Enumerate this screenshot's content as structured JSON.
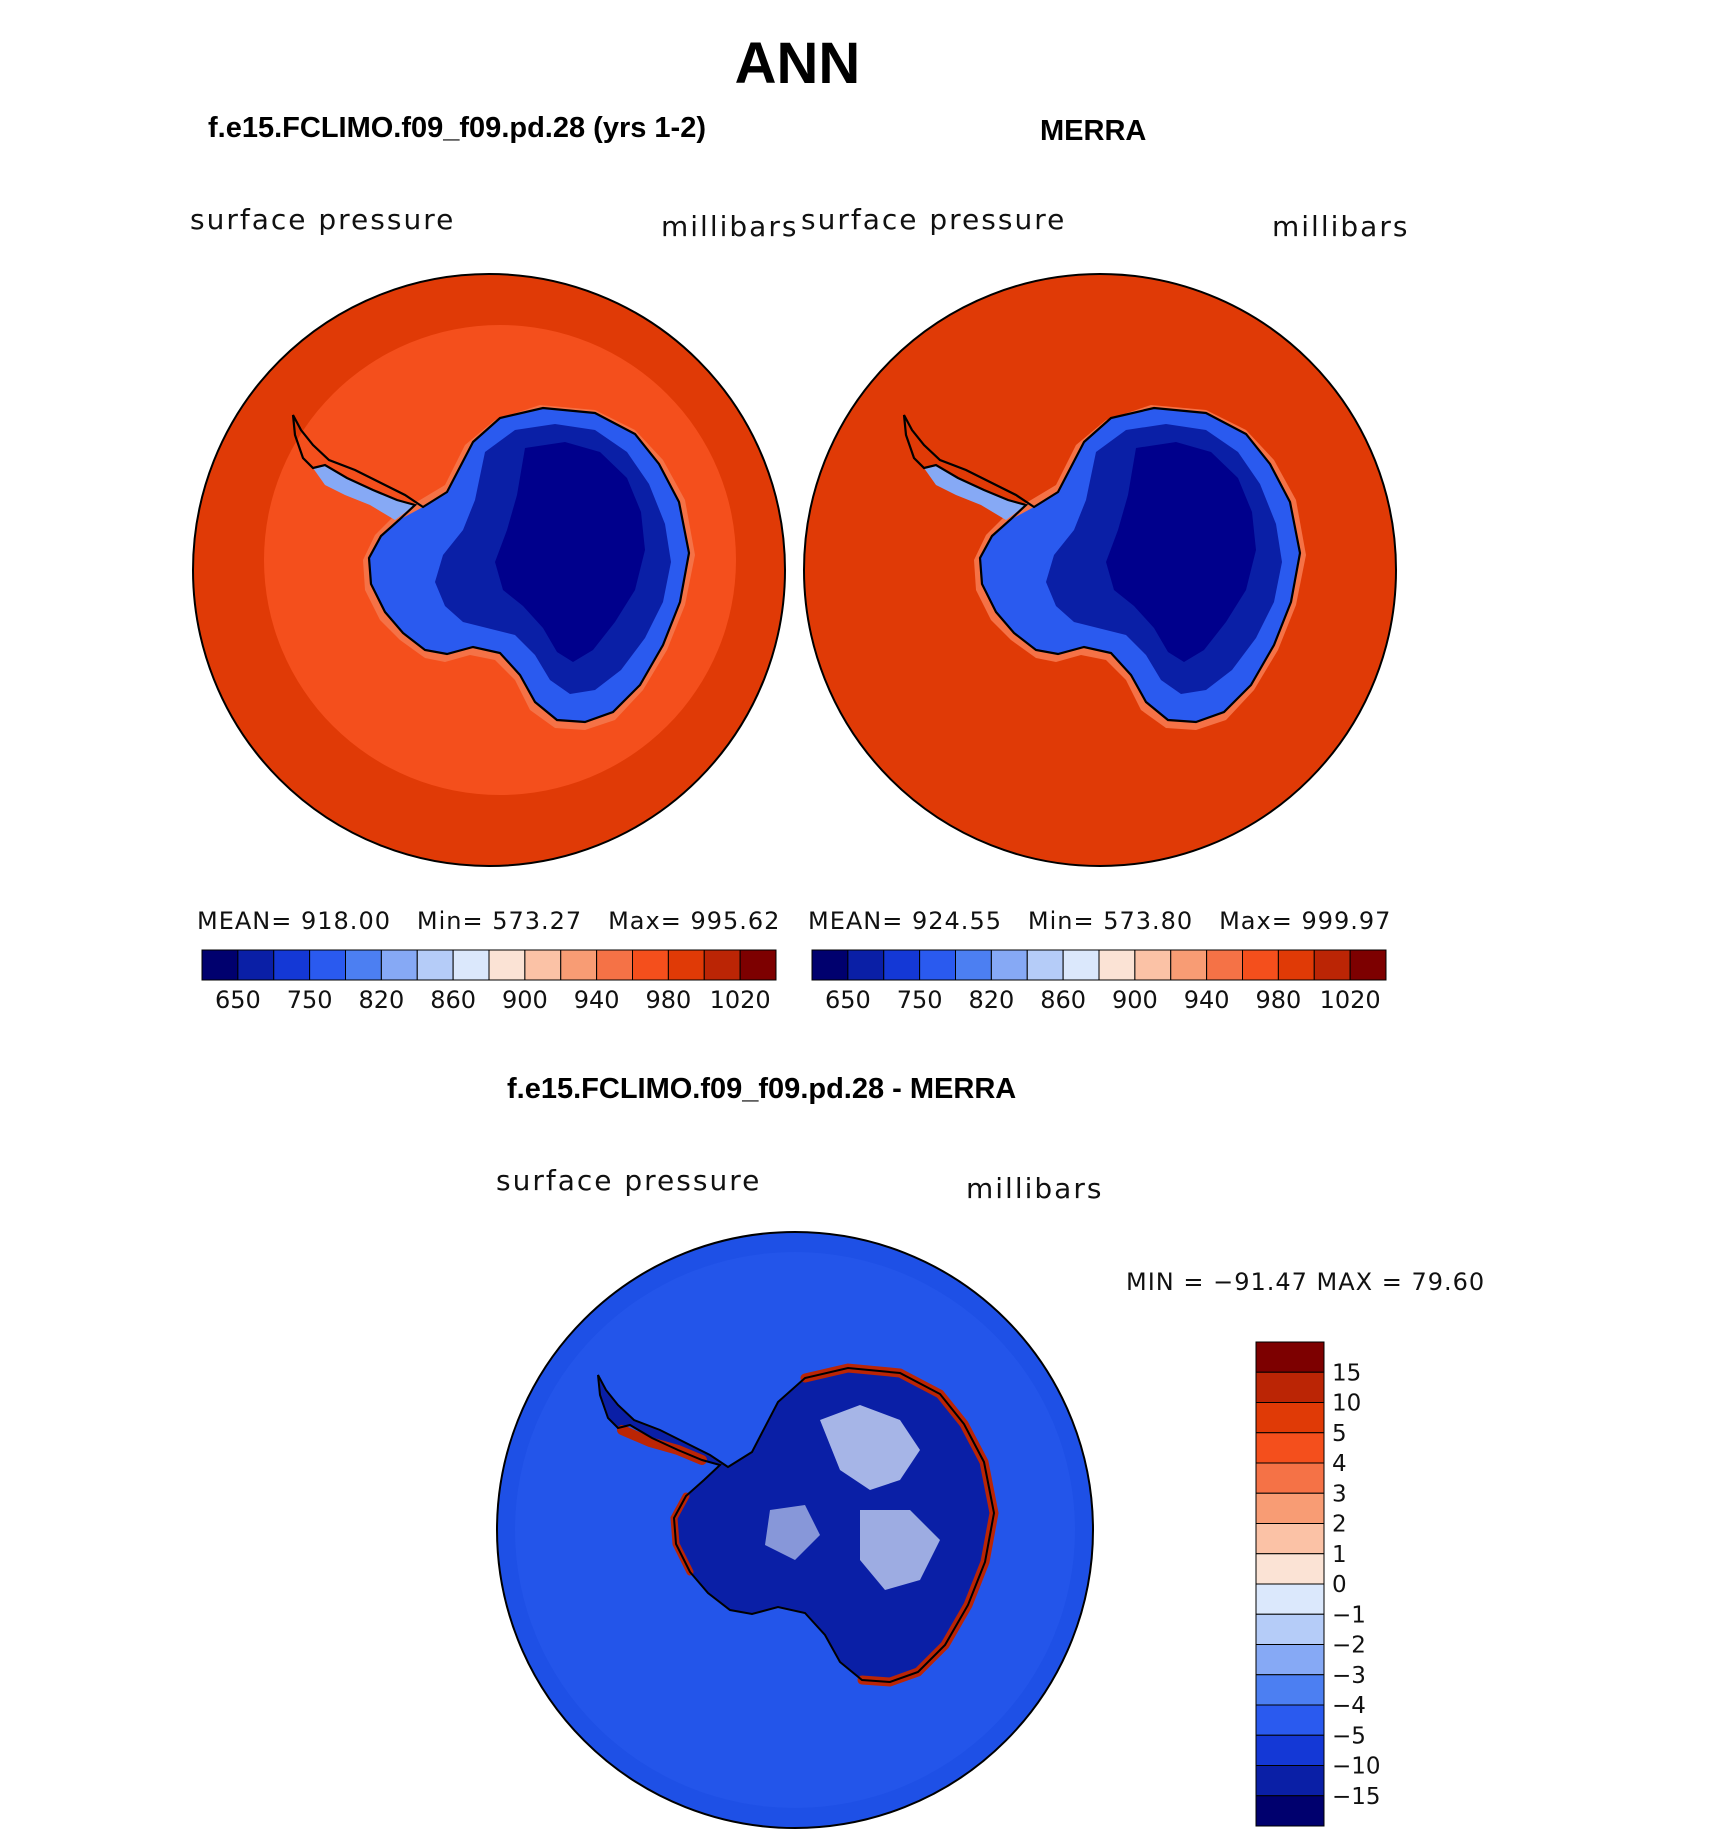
{
  "main_title": "ANN",
  "panels": [
    {
      "title": "f.e15.FCLIMO.f09_f09.pd.28 (yrs 1-2)",
      "variable": "surface pressure",
      "units": "millibars",
      "stats": {
        "mean_label": "MEAN=",
        "mean": "918.00",
        "min_label": "Min=",
        "min": "573.27",
        "max_label": "Max=",
        "max": "995.62"
      }
    },
    {
      "title": "MERRA",
      "variable": "surface pressure",
      "units": "millibars",
      "stats": {
        "mean_label": "MEAN=",
        "mean": "924.55",
        "min_label": "Min=",
        "min": "573.80",
        "max_label": "Max=",
        "max": "999.97"
      }
    }
  ],
  "diff_panel": {
    "title": "f.e15.FCLIMO.f09_f09.pd.28 - MERRA",
    "variable": "surface pressure",
    "units": "millibars",
    "minmax": "MIN = −91.47 MAX =   79.60"
  },
  "colorbar_abs": {
    "labels": [
      "650",
      "750",
      "820",
      "860",
      "900",
      "940",
      "980",
      "1020"
    ],
    "colors": [
      "#00006e",
      "#0a1fa6",
      "#1438d6",
      "#2a5aef",
      "#4c7ff2",
      "#86a9f5",
      "#b5ccf8",
      "#dbe8fc",
      "#fbe3d5",
      "#fbc2a6",
      "#f89c74",
      "#f57246",
      "#f44f1c",
      "#e03a06",
      "#bb2505",
      "#7d0000"
    ]
  },
  "colorbar_diff": {
    "labels": [
      "15",
      "10",
      "5",
      "4",
      "3",
      "2",
      "1",
      "0",
      "−1",
      "−2",
      "−3",
      "−4",
      "−5",
      "−10",
      "−15"
    ],
    "colors": [
      "#7d0000",
      "#bb2505",
      "#e03a06",
      "#f44f1c",
      "#f57246",
      "#f89c74",
      "#fbc2a6",
      "#fbe3d5",
      "#dbe8fc",
      "#b5ccf8",
      "#86a9f5",
      "#4c7ff2",
      "#2a5aef",
      "#1438d6",
      "#0a1fa6",
      "#00006e"
    ]
  },
  "map_colors": {
    "ocean_outer": "#e03a06",
    "ocean_inner_model": "#f44f1c",
    "ocean_diff": "#1e50e6",
    "ocean_diff_edge": "#2a5aef",
    "plateau": "#00008c",
    "interior": "#0a1fa6",
    "slope": "#2a5aef",
    "slope_light": "#86a9f5",
    "coast_warm": "#f57246",
    "diff_land": "#0a1fa6",
    "diff_land_light": "#dbe8fc",
    "diff_red": "#bb2505"
  }
}
